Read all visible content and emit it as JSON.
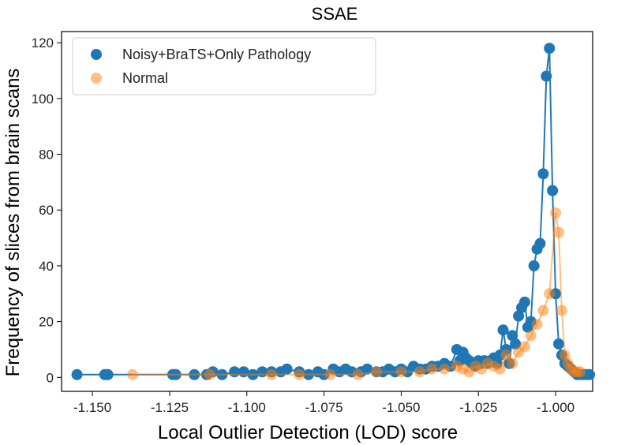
{
  "chart_data": {
    "type": "scatter",
    "title": "SSAE",
    "xlabel": "Local Outlier Detection (LOD) score",
    "ylabel": "Frequency of slices from brain scans",
    "xlim": [
      -1.16,
      -0.988
    ],
    "ylim": [
      -5,
      124
    ],
    "xticks": [
      -1.15,
      -1.125,
      -1.1,
      -1.075,
      -1.05,
      -1.025,
      -1.0
    ],
    "xtick_labels": [
      "-1.150",
      "-1.125",
      "-1.100",
      "-1.075",
      "-1.050",
      "-1.025",
      "-1.000"
    ],
    "yticks": [
      0,
      20,
      40,
      60,
      80,
      100,
      120
    ],
    "ytick_labels": [
      "0",
      "20",
      "40",
      "60",
      "80",
      "100",
      "120"
    ],
    "legend_position": "top-left",
    "series": [
      {
        "name": "Noisy+BraTS+Only Pathology",
        "color": "#1f77b4",
        "x": [
          -1.155,
          -1.146,
          -1.145,
          -1.124,
          -1.123,
          -1.117,
          -1.113,
          -1.111,
          -1.108,
          -1.104,
          -1.101,
          -1.098,
          -1.095,
          -1.092,
          -1.089,
          -1.087,
          -1.083,
          -1.08,
          -1.077,
          -1.075,
          -1.072,
          -1.07,
          -1.068,
          -1.066,
          -1.063,
          -1.061,
          -1.058,
          -1.056,
          -1.054,
          -1.052,
          -1.05,
          -1.048,
          -1.046,
          -1.044,
          -1.042,
          -1.04,
          -1.038,
          -1.036,
          -1.034,
          -1.032,
          -1.031,
          -1.03,
          -1.029,
          -1.028,
          -1.027,
          -1.026,
          -1.025,
          -1.024,
          -1.023,
          -1.022,
          -1.021,
          -1.02,
          -1.019,
          -1.018,
          -1.017,
          -1.016,
          -1.015,
          -1.014,
          -1.013,
          -1.012,
          -1.011,
          -1.01,
          -1.009,
          -1.008,
          -1.007,
          -1.006,
          -1.005,
          -1.004,
          -1.003,
          -1.002,
          -1.001,
          -1.0,
          -0.999,
          -0.998,
          -0.997,
          -0.996,
          -0.995,
          -0.994,
          -0.993,
          -0.992,
          -0.991,
          -0.99,
          -0.989
        ],
        "y": [
          1,
          1,
          1,
          1,
          1,
          1,
          1,
          2,
          1,
          2,
          2,
          1,
          2,
          2,
          2,
          3,
          2,
          1,
          2,
          1,
          3,
          2,
          3,
          2,
          2,
          3,
          2,
          2,
          3,
          2,
          3,
          2,
          4,
          3,
          3,
          4,
          4,
          5,
          4,
          10,
          6,
          9,
          7,
          6,
          5,
          4,
          6,
          5,
          6,
          5,
          6,
          7,
          5,
          8,
          17,
          10,
          5,
          15,
          12,
          22,
          25,
          27,
          18,
          20,
          40,
          46,
          48,
          73,
          108,
          118,
          67,
          30,
          12,
          8,
          5,
          4,
          3,
          2,
          1,
          1,
          1,
          1,
          1
        ]
      },
      {
        "name": "Normal",
        "color": "#ff7f0e",
        "x": [
          -1.137,
          -1.112,
          -1.092,
          -1.083,
          -1.073,
          -1.064,
          -1.058,
          -1.05,
          -1.044,
          -1.04,
          -1.036,
          -1.032,
          -1.03,
          -1.028,
          -1.026,
          -1.024,
          -1.022,
          -1.02,
          -1.018,
          -1.016,
          -1.014,
          -1.012,
          -1.01,
          -1.008,
          -1.006,
          -1.004,
          -1.002,
          -1.0,
          -0.999,
          -0.998,
          -0.997,
          -0.996,
          -0.995,
          -0.994,
          -0.993,
          -0.992
        ],
        "y": [
          1,
          1,
          1,
          1,
          1,
          1,
          2,
          2,
          2,
          3,
          3,
          4,
          3,
          2,
          4,
          3,
          5,
          4,
          3,
          8,
          5,
          9,
          11,
          15,
          19,
          24,
          30,
          59,
          52,
          24,
          8,
          5,
          3,
          2,
          2,
          2
        ]
      }
    ]
  }
}
